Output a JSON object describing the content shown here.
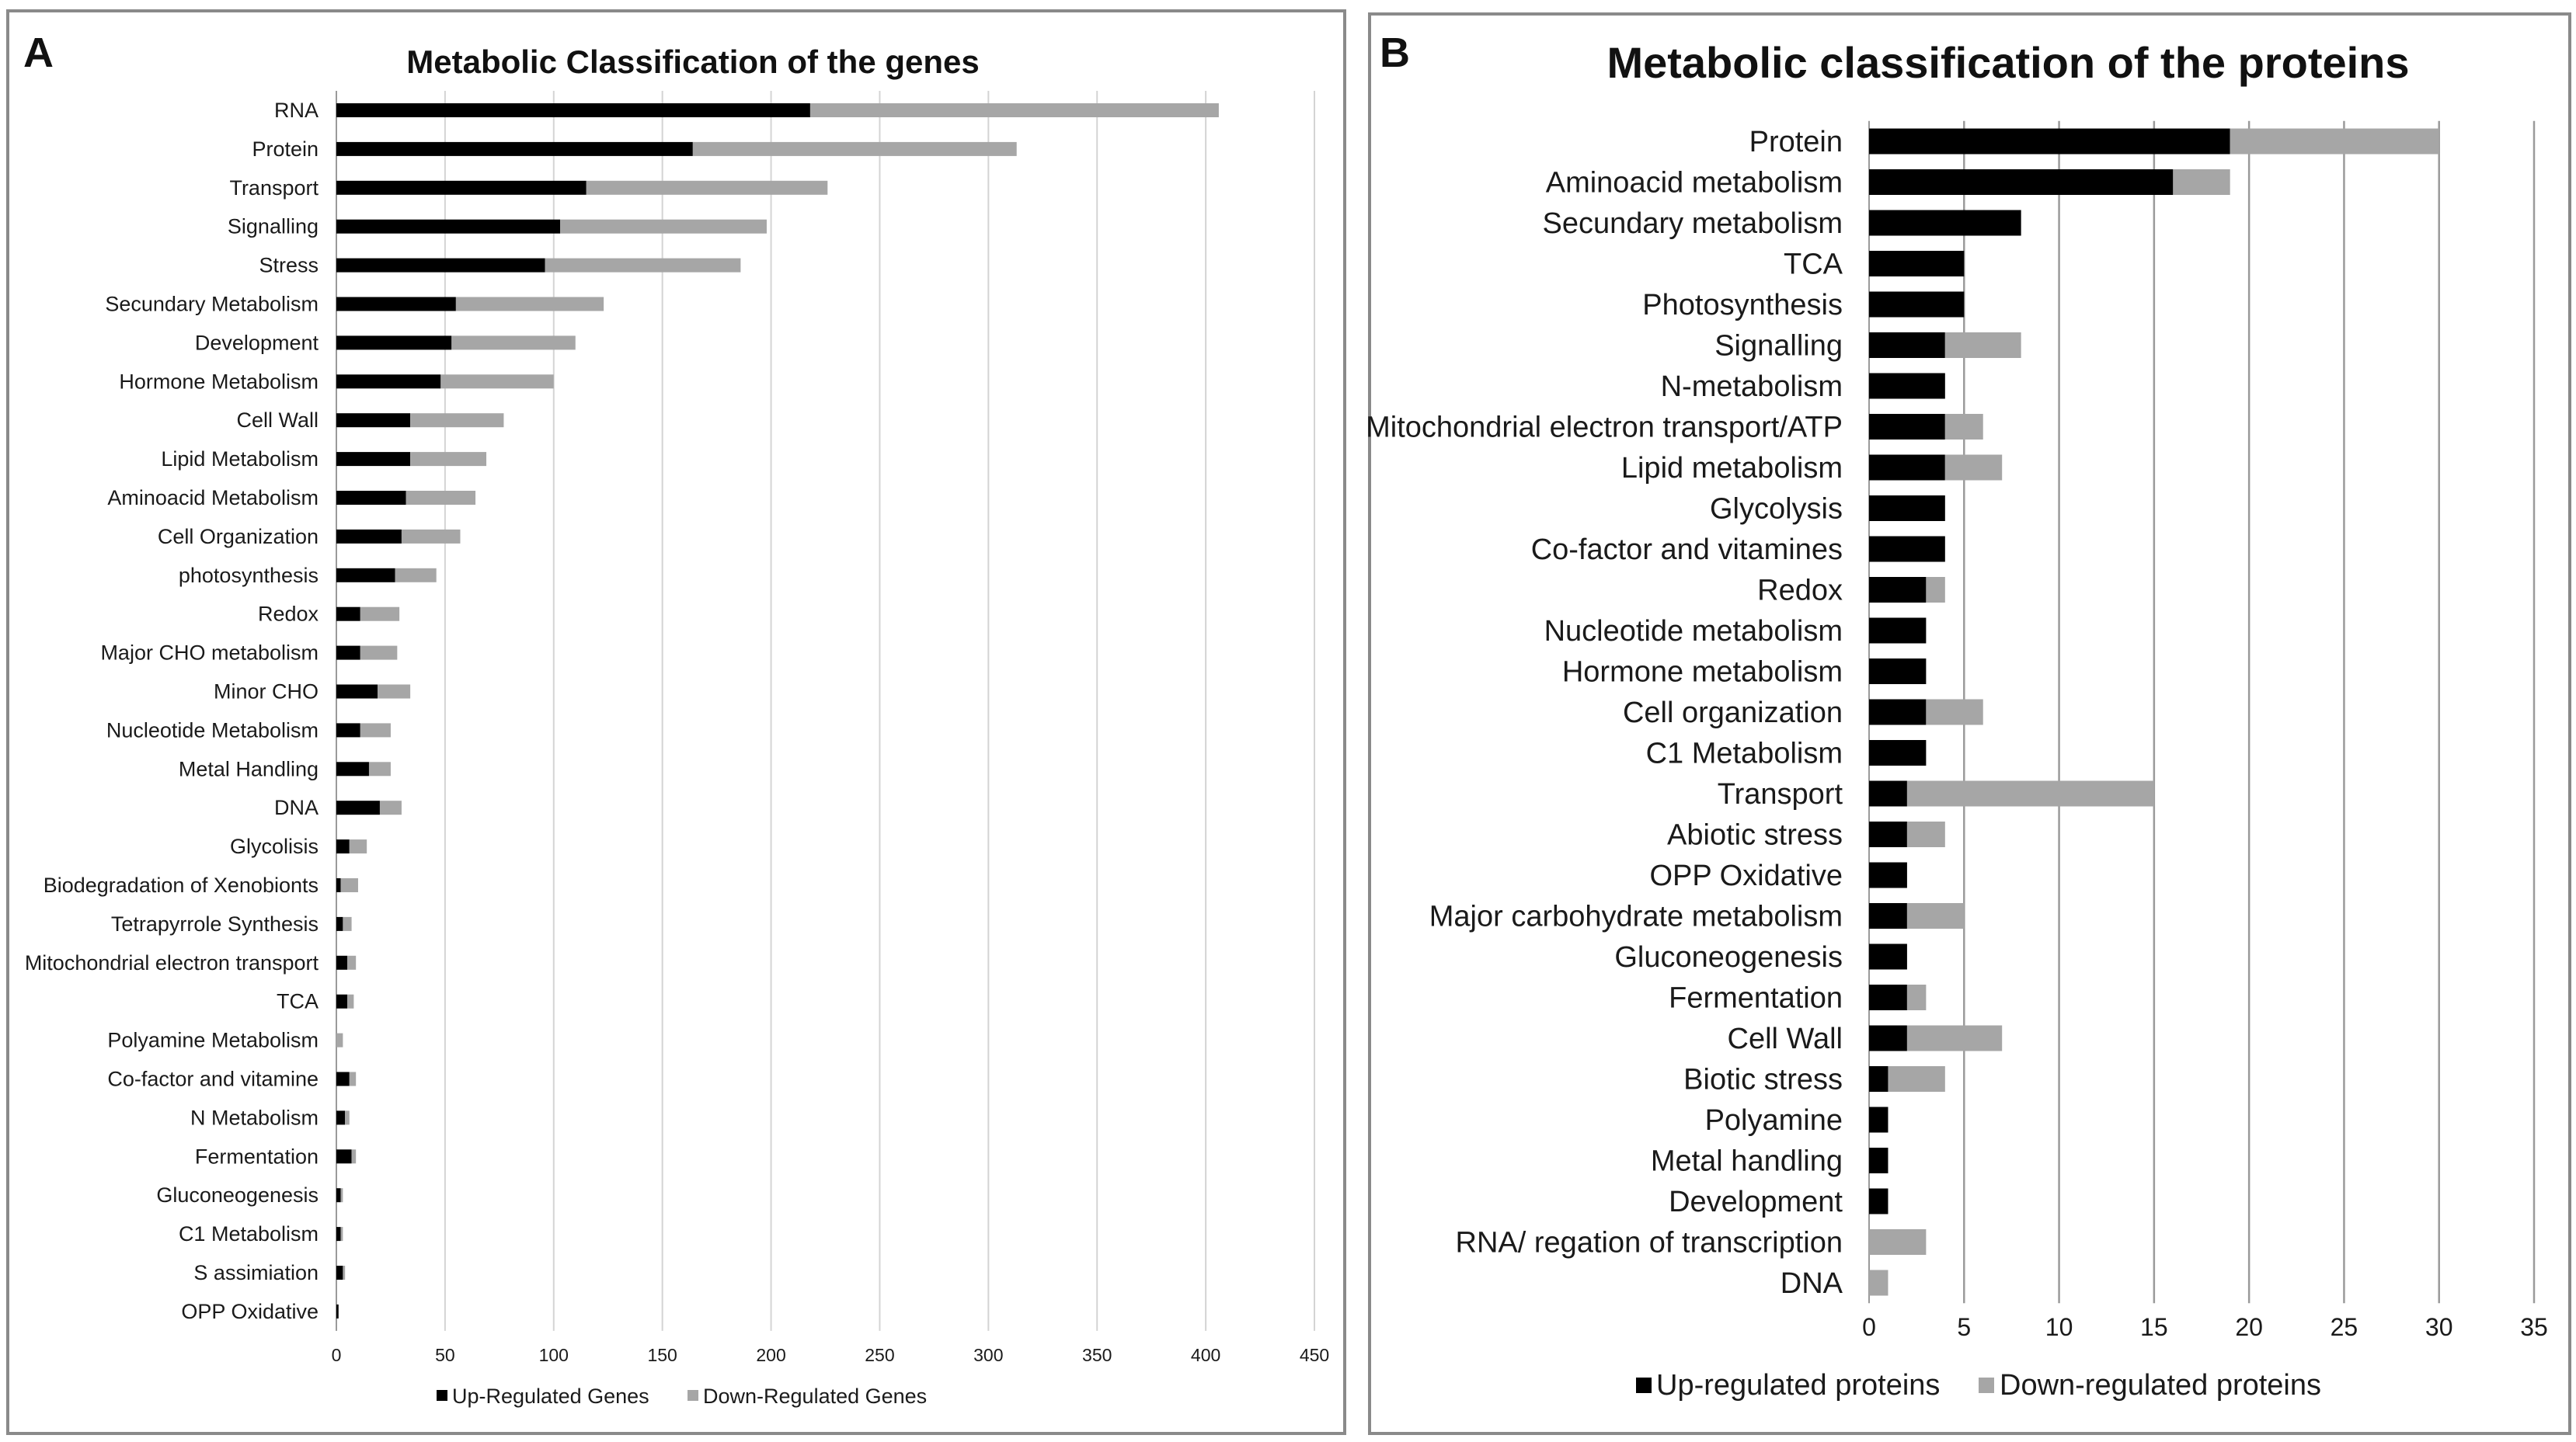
{
  "chart_data": [
    {
      "panel_label": "A",
      "type": "bar",
      "orientation": "horizontal",
      "stacked": true,
      "title": "Metabolic Classification of the genes",
      "xlim": [
        0,
        450
      ],
      "xticks": [
        0,
        50,
        100,
        150,
        200,
        250,
        300,
        350,
        400,
        450
      ],
      "grid": true,
      "legend_position": "bottom",
      "colors": {
        "up": "#000000",
        "down": "#a6a6a6"
      },
      "categories": [
        "RNA",
        "Protein",
        "Transport",
        "Signalling",
        "Stress",
        "Secundary Metabolism",
        "Development",
        "Hormone Metabolism",
        "Cell Wall",
        "Lipid Metabolism",
        "Aminoacid Metabolism",
        "Cell Organization",
        "photosynthesis",
        "Redox",
        "Major CHO metabolism",
        "Minor CHO",
        "Nucleotide Metabolism",
        "Metal Handling",
        "DNA",
        "Glycolisis",
        "Biodegradation of Xenobionts",
        "Tetrapyrrole Synthesis",
        "Mitochondrial electron transport",
        "TCA",
        "Polyamine Metabolism",
        "Co-factor and vitamine",
        "N Metabolism",
        "Fermentation",
        "Gluconeogenesis",
        "C1 Metabolism",
        "S assimiation",
        "OPP Oxidative"
      ],
      "series": [
        {
          "name": "Up-Regulated Genes",
          "values": [
            218,
            164,
            115,
            103,
            96,
            55,
            53,
            48,
            34,
            34,
            32,
            30,
            27,
            11,
            11,
            19,
            11,
            15,
            20,
            6,
            2,
            3,
            5,
            5,
            0,
            6,
            4,
            7,
            2,
            2,
            3,
            1
          ]
        },
        {
          "name": "Down-Regulated Genes",
          "values": [
            188,
            149,
            111,
            95,
            90,
            68,
            57,
            52,
            43,
            35,
            32,
            27,
            19,
            18,
            17,
            15,
            14,
            10,
            10,
            8,
            8,
            4,
            4,
            3,
            3,
            3,
            2,
            2,
            1,
            1,
            1,
            0
          ]
        }
      ]
    },
    {
      "panel_label": "B",
      "type": "bar",
      "orientation": "horizontal",
      "stacked": true,
      "title": "Metabolic classification of the proteins",
      "xlim": [
        0,
        35
      ],
      "xticks": [
        0,
        5,
        10,
        15,
        20,
        25,
        30,
        35
      ],
      "grid": true,
      "legend_position": "bottom",
      "colors": {
        "up": "#000000",
        "down": "#a6a6a6"
      },
      "categories": [
        "Protein",
        "Aminoacid metabolism",
        "Secundary metabolism",
        "TCA",
        "Photosynthesis",
        "Signalling",
        "N-metabolism",
        "Mitochondrial electron transport/ATP",
        "Lipid metabolism",
        "Glycolysis",
        "Co-factor and vitamines",
        "Redox",
        "Nucleotide metabolism",
        "Hormone metabolism",
        "Cell organization",
        "C1 Metabolism",
        "Transport",
        "Abiotic stress",
        "OPP Oxidative",
        "Major carbohydrate metabolism",
        "Gluconeogenesis",
        "Fermentation",
        "Cell Wall",
        "Biotic stress",
        "Polyamine",
        "Metal handling",
        "Development",
        "RNA/ regation of transcription",
        "DNA"
      ],
      "series": [
        {
          "name": "Up-regulated proteins",
          "values": [
            19,
            16,
            8,
            5,
            5,
            4,
            4,
            4,
            4,
            4,
            4,
            3,
            3,
            3,
            3,
            3,
            2,
            2,
            2,
            2,
            2,
            2,
            2,
            1,
            1,
            1,
            1,
            0,
            0
          ]
        },
        {
          "name": "Down-regulated proteins",
          "values": [
            11,
            3,
            0,
            0,
            0,
            4,
            0,
            2,
            3,
            0,
            0,
            1,
            0,
            0,
            3,
            0,
            13,
            2,
            0,
            3,
            0,
            1,
            5,
            3,
            0,
            0,
            0,
            3,
            1
          ]
        }
      ]
    }
  ]
}
